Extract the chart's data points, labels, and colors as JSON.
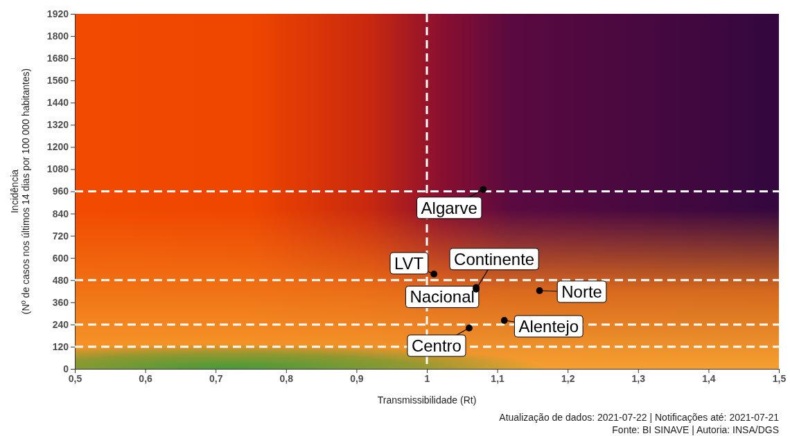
{
  "chart_data": {
    "type": "scatter",
    "xlabel": "Transmissibilidade (Rt)",
    "ylabel": "Incidência\n(Nº de casos nos últimos 14 dias por 100 000 habitantes)",
    "x": [
      1.08,
      1.01,
      1.07,
      1.16,
      1.07,
      1.06,
      1.11
    ],
    "values": [
      970,
      513,
      431,
      423,
      440,
      221,
      262
    ],
    "color": "#000000",
    "marker": "circle",
    "xlim": [
      0.5,
      1.5
    ],
    "xticks": [
      {
        "value": 0.5,
        "label": "0,5"
      },
      {
        "value": 0.6,
        "label": "0,6"
      },
      {
        "value": 0.7,
        "label": "0,7"
      },
      {
        "value": 0.8,
        "label": "0,8"
      },
      {
        "value": 0.9,
        "label": "0,9"
      },
      {
        "value": 1,
        "label": "1"
      },
      {
        "value": 1.1,
        "label": "1,1"
      },
      {
        "value": 1.2,
        "label": "1,2"
      },
      {
        "value": 1.3,
        "label": "1,3"
      },
      {
        "value": 1.4,
        "label": "1,4"
      },
      {
        "value": 1.5,
        "label": "1,5"
      }
    ],
    "ylim": [
      0,
      1920
    ],
    "yticks": [
      0,
      120,
      240,
      360,
      480,
      600,
      720,
      840,
      960,
      1080,
      1200,
      1320,
      1440,
      1560,
      1680,
      1800,
      1920
    ],
    "ref_lines": [
      {
        "axis": "x",
        "value": 1,
        "color": "#ffffff",
        "line_style": "dashed"
      },
      {
        "axis": "y",
        "value": 120,
        "color": "#ffffff",
        "line_style": "dashed"
      },
      {
        "axis": "y",
        "value": 240,
        "color": "#ffffff",
        "line_style": "dashed"
      },
      {
        "axis": "y",
        "value": 480,
        "color": "#ffffff",
        "line_style": "dashed"
      },
      {
        "axis": "y",
        "value": 960,
        "color": "#ffffff",
        "line_style": "dashed"
      }
    ],
    "annotations": [
      {
        "text": "Algarve",
        "x": 1.08,
        "y": 970
      },
      {
        "text": "LVT",
        "x": 1.01,
        "y": 513
      },
      {
        "text": "Continente",
        "x": 1.07,
        "y": 431
      },
      {
        "text": "Norte",
        "x": 1.16,
        "y": 423
      },
      {
        "text": "Nacional",
        "x": 1.07,
        "y": 440
      },
      {
        "text": "Centro",
        "x": 1.06,
        "y": 221
      },
      {
        "text": "Alentejo",
        "x": 1.11,
        "y": 262
      },
      "Atualização de dados: 2021-07-22 | Notificações até: 2021-07-21",
      "Fonte: BI SINAVE | Autoria: INSA/DGS"
    ]
  }
}
